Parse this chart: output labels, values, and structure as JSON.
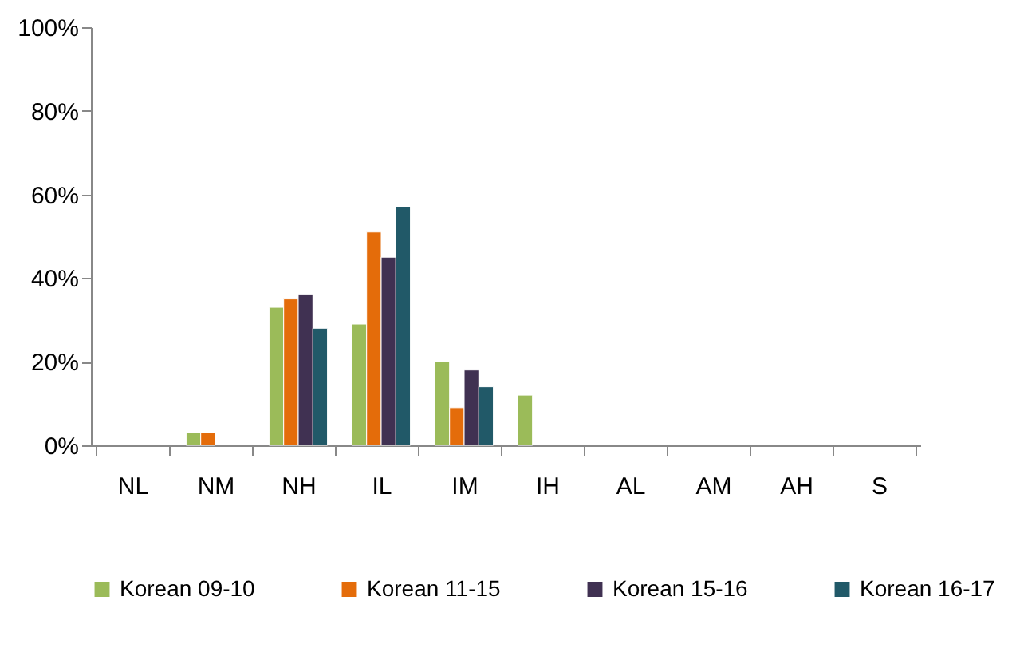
{
  "chart_data": {
    "type": "bar",
    "categories": [
      "NL",
      "NM",
      "NH",
      "IL",
      "IM",
      "IH",
      "AL",
      "AM",
      "AH",
      "S"
    ],
    "series": [
      {
        "name": "Korean 09-10",
        "color": "#9bbb59",
        "values": [
          null,
          3,
          33,
          29,
          20,
          12,
          null,
          null,
          null,
          null
        ]
      },
      {
        "name": "Korean 11-15",
        "color": "#e46c0a",
        "values": [
          null,
          3,
          35,
          51,
          9,
          null,
          null,
          null,
          null,
          null
        ]
      },
      {
        "name": "Korean 15-16",
        "color": "#403152",
        "values": [
          null,
          null,
          36,
          45,
          18,
          null,
          null,
          null,
          null,
          null
        ]
      },
      {
        "name": "Korean 16-17",
        "color": "#215968",
        "values": [
          null,
          null,
          28,
          57,
          14,
          null,
          null,
          null,
          null,
          null
        ]
      }
    ],
    "ylim": [
      0,
      100
    ],
    "yticks": [
      {
        "value": 0,
        "label": "0%"
      },
      {
        "value": 20,
        "label": "20%"
      },
      {
        "value": 40,
        "label": "40%"
      },
      {
        "value": 60,
        "label": "60%"
      },
      {
        "value": 80,
        "label": "80%"
      },
      {
        "value": 100,
        "label": "100%"
      }
    ],
    "grid": false,
    "legend": "bottom"
  }
}
